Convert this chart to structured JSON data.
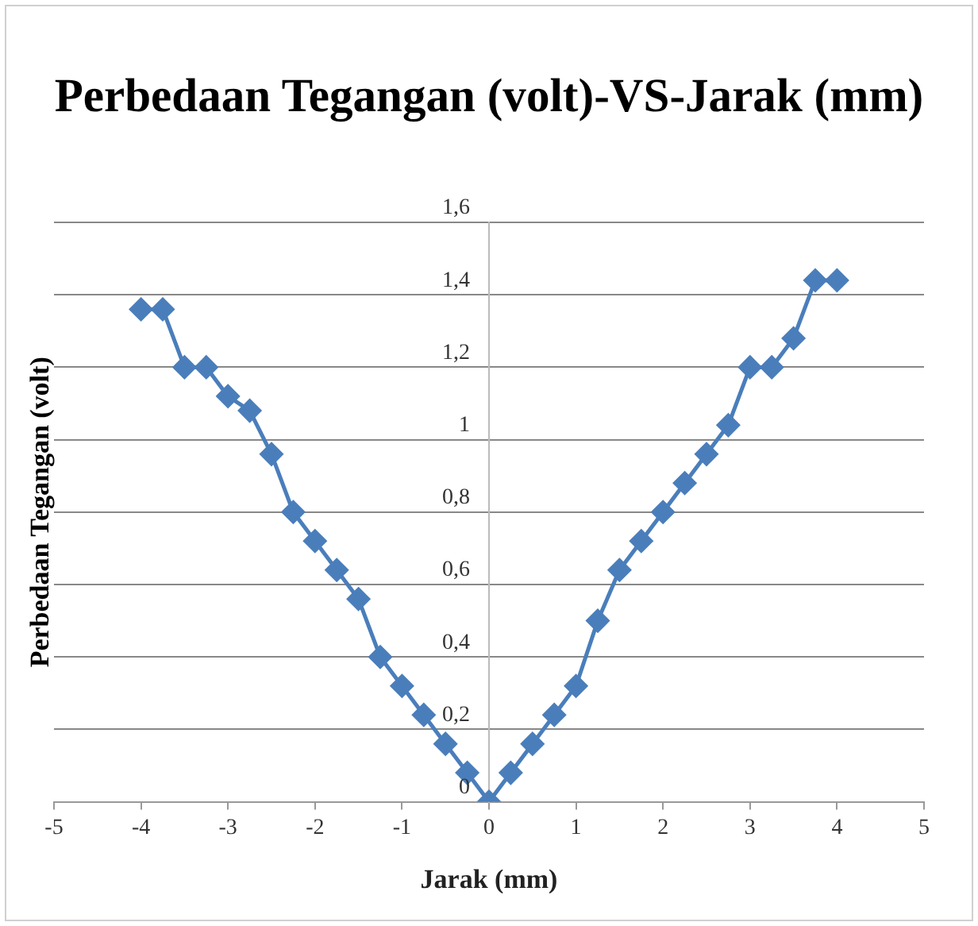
{
  "chart_data": {
    "type": "line",
    "title": "Perbedaan Tegangan (volt)-VS-Jarak (mm)",
    "xlabel": "Jarak (mm)",
    "ylabel": "Perbedaan Tegangan (volt)",
    "x": [
      -4,
      -3.75,
      -3.5,
      -3.25,
      -3,
      -2.75,
      -2.5,
      -2.25,
      -2,
      -1.75,
      -1.5,
      -1.25,
      -1,
      -0.75,
      -0.5,
      -0.25,
      0,
      0.25,
      0.5,
      0.75,
      1,
      1.25,
      1.5,
      1.75,
      2,
      2.25,
      2.5,
      2.75,
      3,
      3.25,
      3.5,
      3.75,
      4
    ],
    "series": [
      {
        "color": "#4a7ebb",
        "values": [
          1.36,
          1.36,
          1.2,
          1.2,
          1.12,
          1.08,
          0.96,
          0.8,
          0.72,
          0.64,
          0.56,
          0.4,
          0.32,
          0.24,
          0.16,
          0.08,
          0,
          0.08,
          0.16,
          0.24,
          0.32,
          0.5,
          0.64,
          0.72,
          0.8,
          0.88,
          0.96,
          1.04,
          1.2,
          1.2,
          1.28,
          1.44,
          1.44
        ]
      }
    ],
    "xlim": [
      -5,
      5
    ],
    "xticks": [
      -5,
      -4,
      -3,
      -2,
      -1,
      0,
      1,
      2,
      3,
      4,
      5
    ],
    "ylim": [
      0,
      1.6
    ],
    "yticks": [
      {
        "value": 0,
        "label": "0"
      },
      {
        "value": 0.2,
        "label": "0,2"
      },
      {
        "value": 0.4,
        "label": "0,4"
      },
      {
        "value": 0.6,
        "label": "0,6"
      },
      {
        "value": 0.8,
        "label": "0,8"
      },
      {
        "value": 1,
        "label": "1"
      },
      {
        "value": 1.2,
        "label": "1,2"
      },
      {
        "value": 1.4,
        "label": "1,4"
      },
      {
        "value": 1.6,
        "label": "1,6"
      }
    ],
    "grid": "y",
    "legend": false,
    "marker": "diamond",
    "line_style": "solid"
  }
}
